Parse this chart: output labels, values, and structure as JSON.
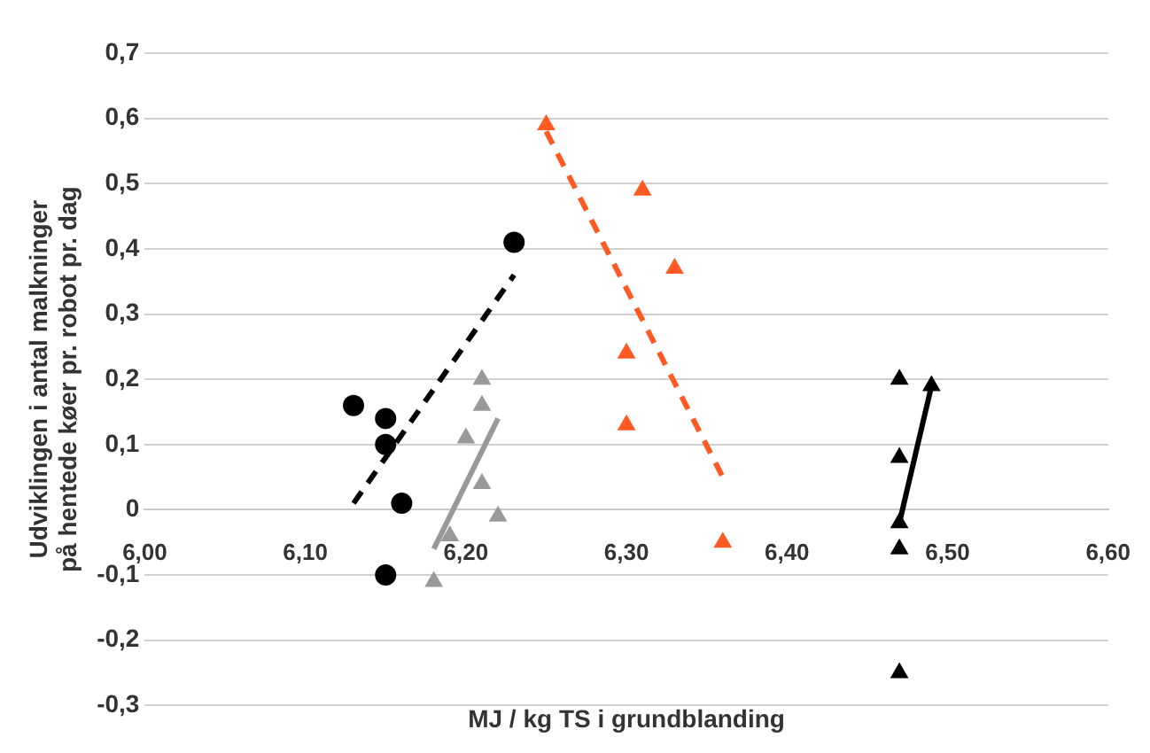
{
  "chart_data": {
    "type": "scatter",
    "xlabel": "MJ / kg TS i grundblanding",
    "ylabel": "Udviklingen i antal malkninger på hentede køer pr. robot pr. dag",
    "xlim": [
      6.0,
      6.6
    ],
    "xticks": [
      {
        "value": 6.0,
        "label": "6,00"
      },
      {
        "value": 6.1,
        "label": "6,10"
      },
      {
        "value": 6.2,
        "label": "6,20"
      },
      {
        "value": 6.3,
        "label": "6,30"
      },
      {
        "value": 6.4,
        "label": "6,40"
      },
      {
        "value": 6.5,
        "label": "6,50"
      },
      {
        "value": 6.6,
        "label": "6,60"
      }
    ],
    "ylim": [
      -0.3,
      0.7
    ],
    "yticks": [
      {
        "value": -0.3,
        "label": "-0,3"
      },
      {
        "value": -0.2,
        "label": "-0,2"
      },
      {
        "value": -0.1,
        "label": "-0,1"
      },
      {
        "value": 0,
        "label": "0"
      },
      {
        "value": 0.1,
        "label": "0,1"
      },
      {
        "value": 0.2,
        "label": "0,2"
      },
      {
        "value": 0.3,
        "label": "0,3"
      },
      {
        "value": 0.4,
        "label": "0,4"
      },
      {
        "value": 0.5,
        "label": "0,5"
      },
      {
        "value": 0.6,
        "label": "0,6"
      },
      {
        "value": 0.7,
        "label": "0,7"
      }
    ],
    "grid": "y",
    "legend": false,
    "series": [
      {
        "type": "scatter",
        "marker": "circle",
        "color": "#000000",
        "x": [
          6.23,
          6.13,
          6.15,
          6.15,
          6.16,
          6.15
        ],
        "values": [
          0.41,
          0.16,
          0.14,
          0.1,
          0.01,
          -0.1
        ]
      },
      {
        "type": "line",
        "marker": "none",
        "line_style": "dashed",
        "color": "#000000",
        "x": [
          6.13,
          6.23
        ],
        "values": [
          0.01,
          0.36
        ]
      },
      {
        "type": "scatter",
        "marker": "triangle",
        "color": "#999999",
        "x": [
          6.21,
          6.21,
          6.2,
          6.21,
          6.22,
          6.19,
          6.18
        ],
        "values": [
          0.2,
          0.16,
          0.11,
          0.04,
          -0.01,
          -0.04,
          -0.11
        ]
      },
      {
        "type": "line",
        "marker": "none",
        "line_style": "solid",
        "color": "#999999",
        "x": [
          6.18,
          6.22
        ],
        "values": [
          -0.06,
          0.14
        ]
      },
      {
        "type": "scatter",
        "marker": "triangle",
        "color": "#ff5a24",
        "x": [
          6.25,
          6.31,
          6.33,
          6.3,
          6.3,
          6.36
        ],
        "values": [
          0.59,
          0.49,
          0.37,
          0.24,
          0.13,
          -0.05
        ]
      },
      {
        "type": "line",
        "marker": "none",
        "line_style": "dashed",
        "color": "#ff5a24",
        "x": [
          6.25,
          6.36
        ],
        "values": [
          0.58,
          0.05
        ]
      },
      {
        "type": "scatter",
        "marker": "triangle",
        "color": "#000000",
        "x": [
          6.47,
          6.47,
          6.47,
          6.47,
          6.47,
          6.49
        ],
        "values": [
          0.2,
          0.08,
          -0.02,
          -0.06,
          -0.25,
          0.19
        ]
      },
      {
        "type": "line",
        "marker": "none",
        "line_style": "solid",
        "color": "#000000",
        "x": [
          6.47,
          6.49
        ],
        "values": [
          -0.02,
          0.19
        ]
      }
    ]
  }
}
